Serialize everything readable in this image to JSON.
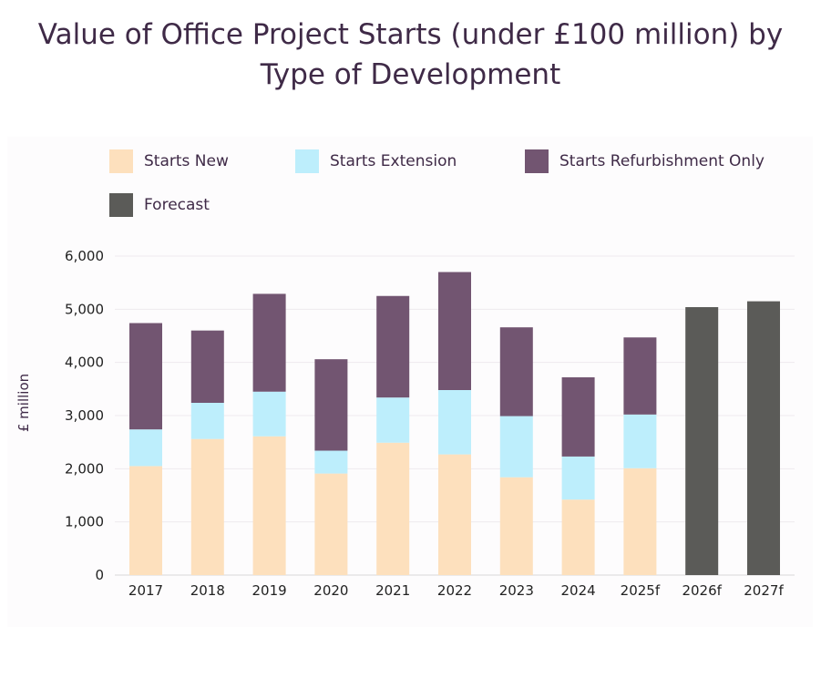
{
  "chart_data": {
    "type": "bar",
    "stacked": true,
    "title": "Value of Office Project Starts (under £100 million) by Type of Development",
    "title_lines": [
      "Value of Office Project Starts (under £100 million) by",
      "Type of Development"
    ],
    "xlabel": "",
    "ylabel": "£ million",
    "ylim": [
      0,
      6000
    ],
    "yticks": [
      "0",
      "1,000",
      "2,000",
      "3,000",
      "4,000",
      "5,000",
      "6,000"
    ],
    "grid": true,
    "legend_position": "top",
    "categories": [
      "2017",
      "2018",
      "2019",
      "2020",
      "2021",
      "2022",
      "2023",
      "2024",
      "2025f",
      "2026f",
      "2027f"
    ],
    "series": [
      {
        "name": "Starts New",
        "color": "#fde0bd",
        "values": [
          2050,
          2560,
          2610,
          1910,
          2490,
          2270,
          1840,
          1420,
          2010,
          null,
          null
        ]
      },
      {
        "name": "Starts Extension",
        "color": "#bdeefc",
        "values": [
          690,
          680,
          840,
          430,
          850,
          1210,
          1150,
          810,
          1010,
          null,
          null
        ]
      },
      {
        "name": "Starts Refurbishment Only",
        "color": "#725571",
        "values": [
          2000,
          1360,
          1840,
          1720,
          1910,
          2220,
          1670,
          1490,
          1450,
          null,
          null
        ]
      },
      {
        "name": "Forecast",
        "color": "#5b5b58",
        "values": [
          null,
          null,
          null,
          null,
          null,
          null,
          null,
          null,
          null,
          5040,
          5150
        ]
      }
    ]
  }
}
